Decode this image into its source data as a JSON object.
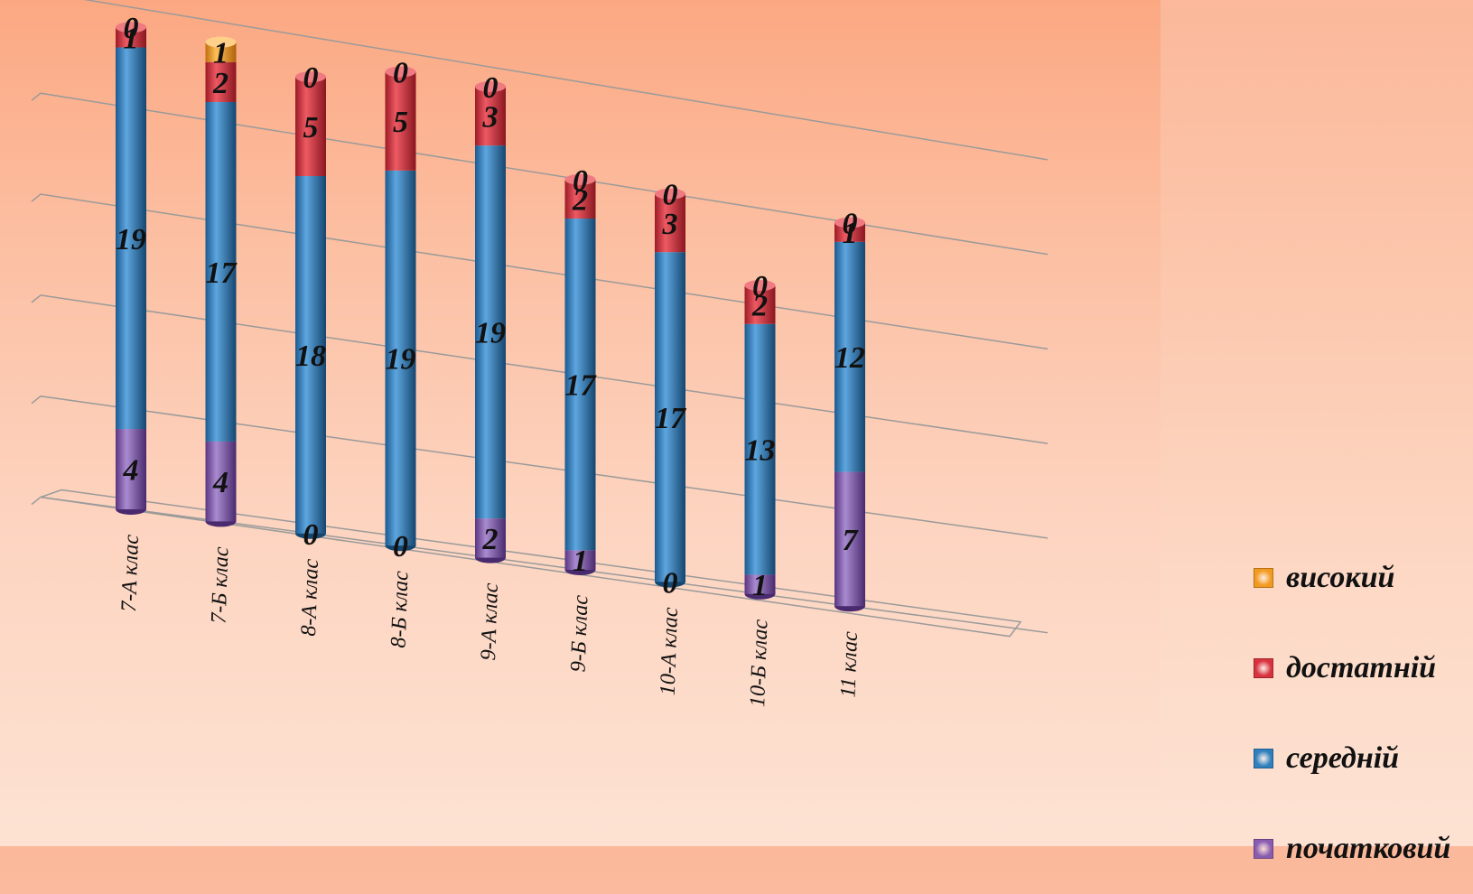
{
  "chart_data": {
    "type": "bar",
    "stacked": true,
    "orientation": "vertical",
    "style": "3d-cylinder",
    "categories": [
      "7-А клас",
      "7-Б клас",
      "8-А клас",
      "8-Б клас",
      "9-А клас",
      "9-Б клас",
      "10-А клас",
      "10-Б клас",
      "11 клас"
    ],
    "series": [
      {
        "name": "початковий",
        "color": "#8a5cb0",
        "values": [
          4,
          4,
          0,
          0,
          2,
          1,
          0,
          1,
          7
        ]
      },
      {
        "name": "середній",
        "color": "#2f7fbe",
        "values": [
          19,
          17,
          18,
          19,
          19,
          17,
          17,
          13,
          12
        ]
      },
      {
        "name": "достатній",
        "color": "#d8323f",
        "values": [
          1,
          2,
          5,
          5,
          3,
          2,
          3,
          2,
          1
        ]
      },
      {
        "name": "високий",
        "color": "#f29a1f",
        "values": [
          0,
          1,
          0,
          0,
          0,
          0,
          0,
          0,
          0
        ]
      }
    ],
    "legend_order": [
      "високий",
      "достатній",
      "середній",
      "початковий"
    ],
    "legend_position": "right",
    "grid": true,
    "ylim": [
      0,
      25
    ]
  }
}
